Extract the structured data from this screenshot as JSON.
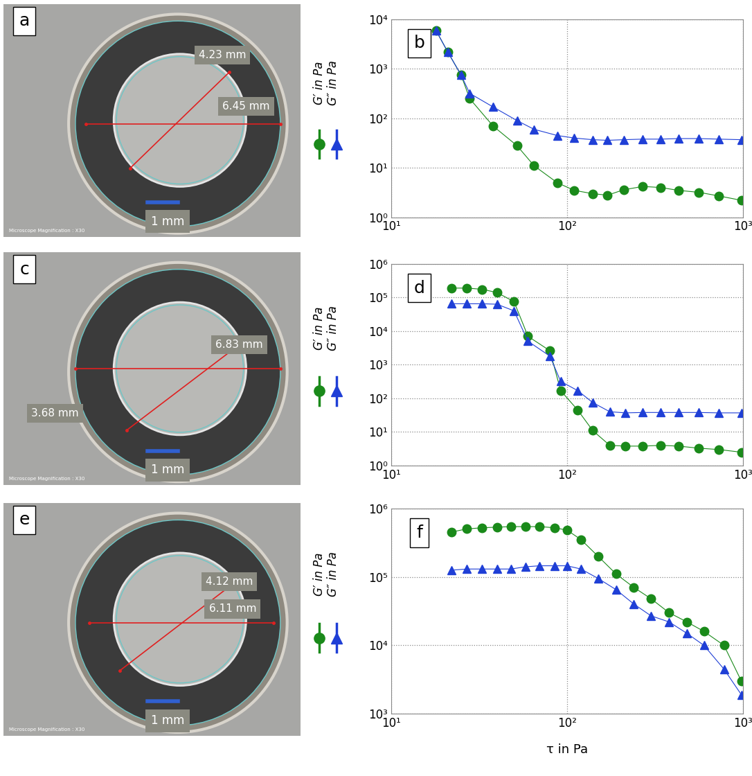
{
  "chart_data": [
    {
      "panel": "b",
      "type": "line",
      "log": true,
      "grid": true,
      "x": [
        18,
        21,
        25,
        28,
        38,
        52,
        65,
        88,
        110,
        140,
        170,
        210,
        270,
        340,
        430,
        560,
        730,
        980
      ],
      "series": [
        {
          "name": "G′ in Pa",
          "color": "#1a8a1a",
          "marker": "o",
          "values": [
            6000,
            2200,
            750,
            250,
            70,
            28,
            11,
            5,
            3.5,
            3,
            2.8,
            3.6,
            4.2,
            4,
            3.5,
            3.2,
            2.7,
            2.2
          ]
        },
        {
          "name": "G″ in Pa",
          "color": "#1f3fd6",
          "marker": "^",
          "values": [
            6000,
            2200,
            750,
            320,
            170,
            90,
            60,
            45,
            40,
            37,
            36,
            37,
            38,
            38,
            39,
            39,
            38,
            37
          ]
        }
      ],
      "xlim": [
        10,
        1000
      ],
      "xticks": [
        {
          "value": 10,
          "label": "10¹"
        },
        {
          "value": 100,
          "label": "10²"
        },
        {
          "value": 1000,
          "label": "10³"
        }
      ],
      "ylim": [
        1,
        10000
      ],
      "yticks": [
        {
          "value": 1,
          "label": "10⁰"
        },
        {
          "value": 10,
          "label": "10¹"
        },
        {
          "value": 100,
          "label": "10²"
        },
        {
          "value": 1000,
          "label": "10³"
        },
        {
          "value": 10000,
          "label": "10⁴"
        }
      ]
    },
    {
      "panel": "d",
      "type": "line",
      "log": true,
      "grid": true,
      "x": [
        22,
        27,
        33,
        40,
        50,
        60,
        80,
        92,
        115,
        140,
        175,
        215,
        270,
        340,
        430,
        560,
        730,
        980
      ],
      "series": [
        {
          "name": "G′ in Pa",
          "color": "#1a8a1a",
          "marker": "o",
          "values": [
            190000,
            190000,
            175000,
            140000,
            75000,
            7000,
            2600,
            170,
            45,
            11,
            4,
            3.8,
            3.8,
            4,
            3.8,
            3.3,
            3,
            2.5
          ]
        },
        {
          "name": "G″ in Pa",
          "color": "#1f3fd6",
          "marker": "^",
          "values": [
            65000,
            65000,
            65000,
            63000,
            40000,
            5000,
            1800,
            320,
            170,
            75,
            40,
            37,
            38,
            38,
            38,
            38,
            37,
            37
          ]
        }
      ],
      "xlim": [
        10,
        1000
      ],
      "xticks": [
        {
          "value": 10,
          "label": "10¹"
        },
        {
          "value": 100,
          "label": "10²"
        },
        {
          "value": 1000,
          "label": "10³"
        }
      ],
      "ylim": [
        1,
        1000000
      ],
      "yticks": [
        {
          "value": 1,
          "label": "10⁰"
        },
        {
          "value": 10,
          "label": "10¹"
        },
        {
          "value": 100,
          "label": "10²"
        },
        {
          "value": 1000,
          "label": "10³"
        },
        {
          "value": 10000,
          "label": "10⁴"
        },
        {
          "value": 100000,
          "label": "10⁵"
        },
        {
          "value": 1000000,
          "label": "10⁶"
        }
      ]
    },
    {
      "panel": "f",
      "type": "line",
      "log": true,
      "grid": true,
      "xlabel": "τ in Pa",
      "x": [
        22,
        27,
        33,
        40,
        48,
        58,
        70,
        85,
        100,
        120,
        150,
        190,
        240,
        300,
        380,
        480,
        600,
        780,
        980
      ],
      "series": [
        {
          "name": "G′ in Pa",
          "color": "#1a8a1a",
          "marker": "o",
          "values": [
            450000,
            500000,
            520000,
            530000,
            540000,
            540000,
            540000,
            520000,
            480000,
            350000,
            200000,
            110000,
            70000,
            48000,
            30000,
            22000,
            16000,
            10000,
            3000
          ]
        },
        {
          "name": "G″ in Pa",
          "color": "#1f3fd6",
          "marker": "^",
          "values": [
            125000,
            130000,
            130000,
            130000,
            130000,
            140000,
            145000,
            145000,
            145000,
            130000,
            95000,
            65000,
            40000,
            27000,
            22000,
            15000,
            10000,
            4500,
            1900
          ]
        }
      ],
      "xlim": [
        10,
        1000
      ],
      "xticks": [
        {
          "value": 10,
          "label": "10¹"
        },
        {
          "value": 100,
          "label": "10²"
        },
        {
          "value": 1000,
          "label": "10³"
        }
      ],
      "ylim": [
        1000,
        1000000
      ],
      "yticks": [
        {
          "value": 1000,
          "label": "10³"
        },
        {
          "value": 10000,
          "label": "10⁴"
        },
        {
          "value": 100000,
          "label": "10⁵"
        },
        {
          "value": 1000000,
          "label": "10⁶"
        }
      ]
    }
  ],
  "images": [
    {
      "panel": "a",
      "measurements": [
        "4.23 mm",
        "6.45 mm"
      ],
      "scale_bar": "1 mm",
      "caption": "Microscope Magnification : X30"
    },
    {
      "panel": "c",
      "measurements": [
        "6.83 mm",
        "3.68 mm"
      ],
      "scale_bar": "1 mm",
      "caption": "Microscope Magnification : X30"
    },
    {
      "panel": "e",
      "measurements": [
        "4.12 mm",
        "6.11 mm"
      ],
      "scale_bar": "1 mm",
      "caption": "Microscope Magnification : X30"
    }
  ]
}
